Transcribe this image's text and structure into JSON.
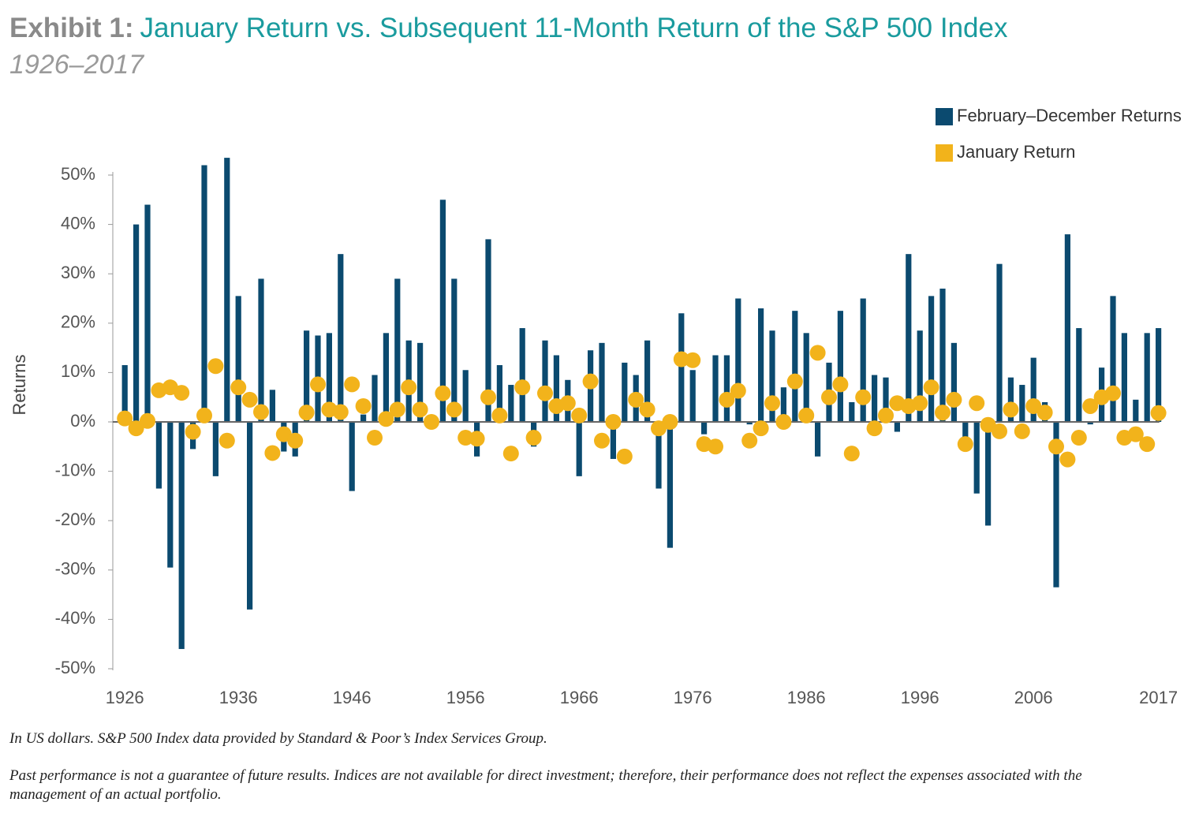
{
  "chart_data": {
    "type": "bar_dot",
    "title_label": "Exhibit 1:",
    "title": "January Return vs. Subsequent 11-Month Return of the S&P 500 Index",
    "subtitle": "1926–2017",
    "y_label": "Returns",
    "categories": [
      "1926",
      null,
      null,
      null,
      null,
      null,
      null,
      null,
      null,
      null,
      "1936",
      null,
      null,
      null,
      null,
      null,
      null,
      null,
      null,
      null,
      "1946",
      null,
      null,
      null,
      null,
      null,
      null,
      null,
      null,
      null,
      "1956",
      null,
      null,
      null,
      null,
      null,
      null,
      null,
      null,
      null,
      "1966",
      null,
      null,
      null,
      null,
      null,
      null,
      null,
      null,
      null,
      "1976",
      null,
      null,
      null,
      null,
      null,
      null,
      null,
      null,
      null,
      "1986",
      null,
      null,
      null,
      null,
      null,
      null,
      null,
      null,
      null,
      "1996",
      null,
      null,
      null,
      null,
      null,
      null,
      null,
      null,
      null,
      "2006",
      null,
      null,
      null,
      null,
      null,
      null,
      null,
      null,
      null,
      null,
      "2017"
    ],
    "series": [
      {
        "name": "February–December Returns",
        "color": "#0b4a6f",
        "kind": "bar",
        "values": [
          11.5,
          40,
          44,
          -13.5,
          -29.5,
          -46,
          -5.5,
          52,
          -11,
          53.5,
          25.5,
          -38,
          29,
          6.5,
          -6,
          -7,
          18.5,
          17.5,
          18,
          34,
          -14,
          1.5,
          9.5,
          18,
          29,
          16.5,
          16,
          -1,
          45,
          29,
          10.5,
          -7,
          37,
          11.5,
          7.5,
          19,
          -5,
          16.5,
          13.5,
          8.5,
          -11,
          14.5,
          16,
          -7.5,
          12,
          9.5,
          16.5,
          -13.5,
          -25.5,
          22,
          10.5,
          -2.5,
          13.5,
          13.5,
          25,
          -0.5,
          23,
          18.5,
          7,
          22.5,
          18,
          -7,
          12,
          22.5,
          4,
          25,
          9.5,
          9,
          -2,
          34,
          18.5,
          25.5,
          27,
          16,
          -5,
          -14.5,
          -21,
          32,
          9,
          7.5,
          13,
          4,
          -33.5,
          38,
          19,
          -0.5,
          11,
          25.5,
          18,
          4.5,
          18,
          19
        ]
      },
      {
        "name": "January Return",
        "color": "#f2b31b",
        "kind": "dot",
        "values": [
          0.7,
          -1.3,
          0.2,
          6.4,
          7,
          5.9,
          -2,
          1.3,
          11.3,
          -3.8,
          7,
          4.5,
          2,
          -6.3,
          -2.5,
          -3.8,
          1.9,
          7.6,
          2.5,
          2,
          7.6,
          3.2,
          -3.2,
          0.6,
          2.5,
          7,
          2.5,
          0,
          5.8,
          2.5,
          -3.2,
          -3.4,
          5,
          1.3,
          -6.4,
          7,
          -3.2,
          5.8,
          3.2,
          3.8,
          1.3,
          8.2,
          -3.8,
          0,
          -7,
          4.5,
          2.5,
          -1.3,
          0,
          12.7,
          12.5,
          -4.5,
          -5,
          4.5,
          6.3,
          -3.8,
          -1.3,
          3.8,
          0,
          8.2,
          1.3,
          14,
          5,
          7.6,
          -6.4,
          5,
          -1.3,
          1.3,
          3.8,
          3.2,
          3.8,
          7,
          1.9,
          4.5,
          -4.5,
          3.8,
          -0.6,
          -1.9,
          2.5,
          -1.9,
          3.2,
          1.9,
          -5,
          -7.6,
          -3.2,
          3.2,
          5,
          5.8,
          -3.2,
          -2.5,
          -4.5,
          1.8
        ]
      }
    ],
    "ylim": [
      -50,
      50
    ],
    "yticks": [
      {
        "value": -50,
        "label": "-50%"
      },
      {
        "value": -40,
        "label": "-40%"
      },
      {
        "value": -30,
        "label": "-30%"
      },
      {
        "value": -20,
        "label": "-20%"
      },
      {
        "value": -10,
        "label": "-10%"
      },
      {
        "value": 0,
        "label": "0%"
      },
      {
        "value": 10,
        "label": "10%"
      },
      {
        "value": 20,
        "label": "20%"
      },
      {
        "value": 30,
        "label": "30%"
      },
      {
        "value": 40,
        "label": "40%"
      },
      {
        "value": 50,
        "label": "50%"
      }
    ],
    "legend": "top-right",
    "footnotes": [
      "In US dollars. S&P 500 Index data provided by Standard & Poor’s Index Services Group.",
      "Past performance is not a guarantee of future results. Indices are not available for direct investment; therefore, their performance does not reflect the expenses associated with the management of an actual portfolio."
    ]
  }
}
